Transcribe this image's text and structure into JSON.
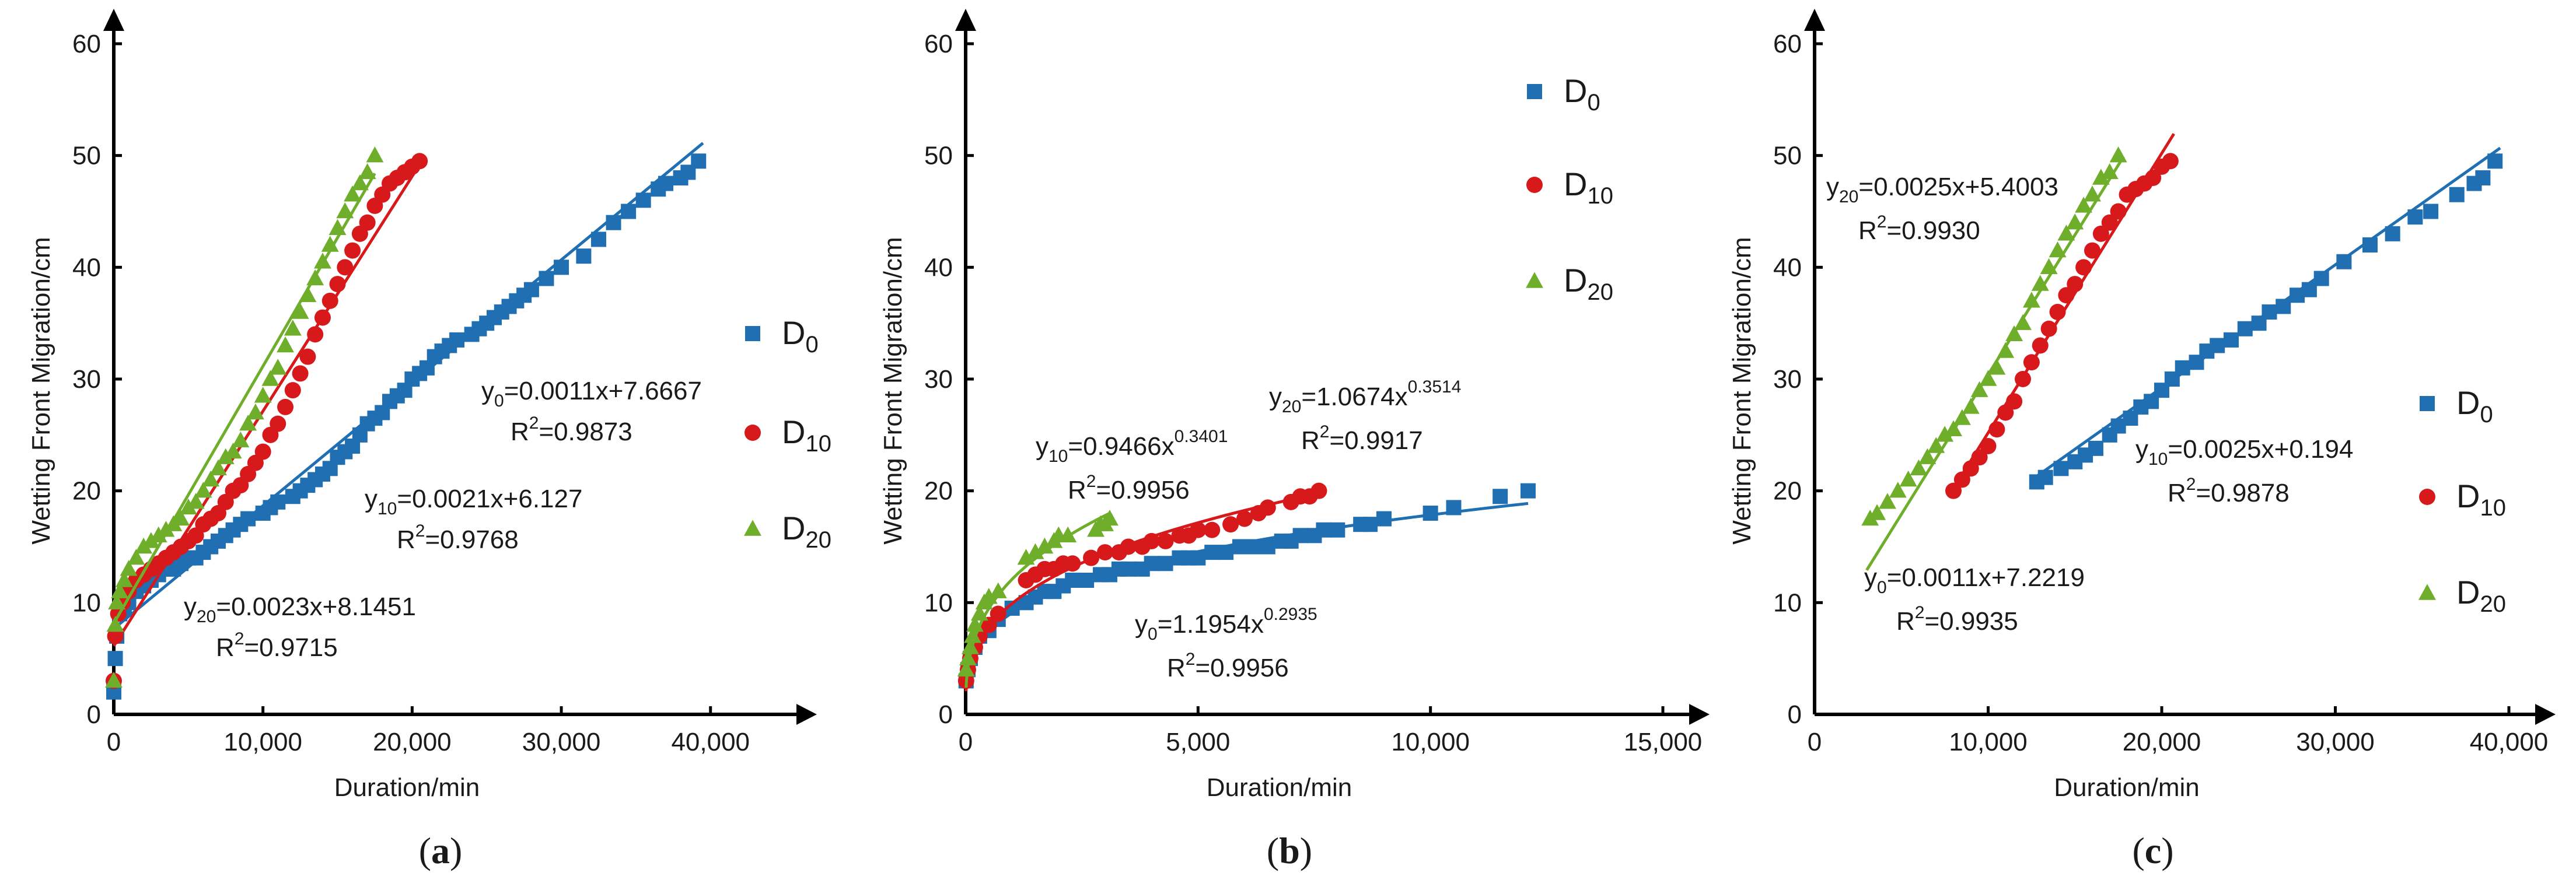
{
  "colors": {
    "D0": "#1f6fb2",
    "D10": "#d7191c",
    "D20": "#6fae2a"
  },
  "x_axis_title": "Duration/min",
  "y_axis_title": "Wetting Front Migration/cm",
  "chart_data": [
    {
      "panel": "(a)",
      "panel_letter": "a",
      "type": "scatter",
      "xlabel": "Duration/min",
      "ylabel": "Wetting Front Migration/cm",
      "xlim": [
        0,
        44000
      ],
      "ylim": [
        0,
        60
      ],
      "x_ticks": [
        0,
        10000,
        20000,
        30000,
        40000
      ],
      "x_tick_labels": [
        "0",
        "10,000",
        "20,000",
        "30,000",
        "40,000"
      ],
      "y_ticks": [
        0,
        10,
        20,
        30,
        40,
        50,
        60
      ],
      "y_tick_labels": [
        "0",
        "10",
        "20",
        "30",
        "40",
        "50",
        "60"
      ],
      "legend": [
        "D0",
        "D10",
        "D20"
      ],
      "legend_position": "right",
      "series": [
        {
          "name": "D0",
          "marker": "square",
          "x": [
            0,
            100,
            200,
            400,
            700,
            1000,
            1500,
            2000,
            2500,
            3000,
            3500,
            4000,
            4500,
            5000,
            5500,
            6000,
            6500,
            7000,
            7500,
            8000,
            8500,
            9000,
            10000,
            10500,
            11000,
            12000,
            12500,
            13000,
            13500,
            14000,
            14500,
            15000,
            15500,
            16000,
            16500,
            17000,
            17500,
            18000,
            18500,
            19000,
            19500,
            20000,
            20500,
            21000,
            21500,
            22000,
            22500,
            23000,
            24000,
            24500,
            25000,
            25500,
            26000,
            26500,
            27000,
            27500,
            28000,
            29000,
            30000,
            31500,
            32500,
            33500,
            34500,
            35500,
            36500,
            37000,
            38000,
            38500,
            39200
          ],
          "y": [
            2,
            5,
            7,
            9,
            9.5,
            10,
            11,
            11.5,
            12,
            12.5,
            13,
            13,
            13.5,
            14,
            14,
            14.5,
            15,
            15.5,
            16,
            16.5,
            17,
            17.5,
            18,
            18.5,
            19,
            19.5,
            20,
            20.5,
            21,
            21.5,
            22,
            23,
            23.5,
            24,
            25,
            26,
            26.5,
            27,
            28,
            28.5,
            29,
            30,
            30.5,
            31,
            32,
            32.5,
            33,
            33.5,
            34,
            34.5,
            35,
            35.5,
            36,
            36.5,
            37,
            37.5,
            38,
            39,
            40,
            41,
            42.5,
            44,
            45,
            46,
            47,
            47.5,
            48,
            48.5,
            49.5
          ],
          "fit": {
            "equation": "y0=0.0011x+7.6667",
            "r2": "R2=0.9873",
            "kind": "linear",
            "x_range": [
              0,
              39500
            ]
          }
        },
        {
          "name": "D10",
          "marker": "circle",
          "x": [
            0,
            100,
            300,
            600,
            1000,
            1500,
            2000,
            2500,
            3000,
            3500,
            4000,
            4500,
            5000,
            5500,
            6000,
            6500,
            7000,
            7500,
            8000,
            8500,
            9000,
            9500,
            10000,
            10500,
            11000,
            11500,
            12000,
            12500,
            13000,
            13500,
            14000,
            14500,
            15000,
            15500,
            16000,
            16500,
            17000,
            17500,
            18000,
            18500,
            19000,
            19500,
            20000,
            20500
          ],
          "y": [
            3,
            7,
            9,
            10,
            11,
            12,
            12.5,
            13,
            13.5,
            14,
            14.5,
            15,
            15.5,
            16,
            17,
            17.5,
            18,
            19,
            20,
            20.5,
            21.5,
            22.5,
            23.5,
            25,
            26,
            27.5,
            29,
            30.5,
            32,
            34,
            35.5,
            37,
            38.5,
            40,
            41.5,
            43,
            44,
            45.5,
            46.5,
            47.5,
            48,
            48.5,
            49,
            49.5
          ],
          "fit": {
            "equation": "y10=0.0021x+6.127",
            "r2": "R2=0.9768",
            "kind": "linear",
            "x_range": [
              0,
              20500
            ]
          }
        },
        {
          "name": "D20",
          "marker": "triangle",
          "x": [
            0,
            100,
            200,
            400,
            700,
            1000,
            1500,
            2000,
            2500,
            3000,
            3500,
            4000,
            4500,
            5000,
            5500,
            6000,
            6500,
            7000,
            7500,
            8000,
            8500,
            9000,
            9500,
            10000,
            10500,
            11000,
            11500,
            12000,
            12500,
            13000,
            13500,
            14000,
            14500,
            15000,
            15500,
            16000,
            16500,
            17000,
            17500
          ],
          "y": [
            3,
            8,
            10,
            11,
            12,
            13,
            14,
            15,
            15.5,
            16,
            16.5,
            17,
            17.5,
            18.5,
            19,
            20,
            21,
            22,
            23,
            23.5,
            24.5,
            26,
            27,
            28.5,
            30,
            31,
            33,
            34.5,
            36,
            37.5,
            39,
            40.5,
            42,
            43.5,
            45,
            46.5,
            47.5,
            48.5,
            50
          ],
          "fit": {
            "equation": "y20=0.0023x+8.1451",
            "r2": "R2=0.9715",
            "kind": "linear",
            "x_range": [
              0,
              17500
            ]
          }
        }
      ]
    },
    {
      "panel": "(b)",
      "panel_letter": "b",
      "type": "scatter",
      "xlabel": "Duration/min",
      "ylabel": "Wetting Front Migration/cm",
      "xlim": [
        0,
        15000
      ],
      "ylim": [
        0,
        60
      ],
      "x_ticks": [
        0,
        5000,
        10000,
        15000
      ],
      "x_tick_labels": [
        "0",
        "5,000",
        "10,000",
        "15,000"
      ],
      "y_ticks": [
        0,
        10,
        20,
        30,
        40,
        50,
        60
      ],
      "y_tick_labels": [
        "0",
        "10",
        "20",
        "30",
        "40",
        "50",
        "60"
      ],
      "legend": [
        "D0",
        "D10",
        "D20"
      ],
      "legend_position": "top-right",
      "series": [
        {
          "name": "D0",
          "marker": "square",
          "x": [
            10,
            50,
            100,
            200,
            300,
            500,
            700,
            1000,
            1300,
            1500,
            1700,
            1900,
            2100,
            2300,
            2600,
            2900,
            3100,
            3300,
            3500,
            3800,
            4000,
            4300,
            4600,
            4800,
            5000,
            5300,
            5600,
            5900,
            6200,
            6500,
            6800,
            7000,
            7200,
            7500,
            7700,
            8000,
            8500,
            8700,
            9000,
            10000,
            10500,
            11500,
            12100
          ],
          "y": [
            3,
            4,
            5,
            6,
            7,
            7.5,
            8.5,
            9.5,
            10,
            10.5,
            11,
            11,
            11.5,
            12,
            12,
            12.5,
            12.5,
            13,
            13,
            13,
            13.5,
            13.5,
            14,
            14,
            14,
            14.5,
            14.5,
            15,
            15,
            15,
            15.5,
            15.5,
            16,
            16,
            16.5,
            16.5,
            17,
            17,
            17.5,
            18,
            18.5,
            19.5,
            20
          ],
          "fit": {
            "equation": "y0=1.1954x0.2935",
            "r2": "R2=0.9956",
            "kind": "power",
            "a": 1.1954,
            "b": 0.2935,
            "x_range": [
              10,
              12100
            ]
          }
        },
        {
          "name": "D10",
          "marker": "circle",
          "x": [
            10,
            50,
            100,
            200,
            300,
            500,
            700,
            1300,
            1500,
            1700,
            1900,
            2100,
            2300,
            2700,
            3000,
            3300,
            3500,
            3800,
            4000,
            4300,
            4600,
            4800,
            5000,
            5300,
            5700,
            6000,
            6300,
            6500,
            7000,
            7200,
            7400,
            7600
          ],
          "y": [
            3,
            4,
            5,
            6,
            7,
            8,
            9,
            12,
            12.5,
            13,
            13,
            13.5,
            13.5,
            14,
            14.5,
            14.5,
            15,
            15,
            15.5,
            15.5,
            16,
            16,
            16.5,
            16.5,
            17,
            17.5,
            18,
            18.5,
            19,
            19.5,
            19.5,
            20
          ],
          "fit": {
            "equation": "y10=0.9466x0.3401",
            "r2": "R2=0.9956",
            "kind": "power",
            "a": 0.9466,
            "b": 0.3401,
            "x_range": [
              10,
              7700
            ]
          }
        },
        {
          "name": "D20",
          "marker": "triangle",
          "x": [
            10,
            50,
            100,
            150,
            200,
            300,
            400,
            500,
            700,
            1300,
            1500,
            1700,
            1900,
            2000,
            2200,
            2800,
            2900,
            3000,
            3100
          ],
          "y": [
            4,
            5,
            6,
            7,
            8,
            9,
            10,
            10.5,
            11,
            14,
            14.5,
            15,
            15.5,
            16,
            16,
            16.5,
            17,
            17,
            17.5
          ],
          "fit": {
            "equation": "y20=1.0674x0.3514",
            "r2": "R2=0.9917",
            "kind": "power",
            "a": 1.0674,
            "b": 0.3514,
            "x_range": [
              10,
              3100
            ]
          }
        }
      ]
    },
    {
      "panel": "(c)",
      "panel_letter": "c",
      "type": "scatter",
      "xlabel": "Duration/min",
      "ylabel": "Wetting Front Migration/cm",
      "xlim": [
        0,
        40000
      ],
      "ylim": [
        0,
        60
      ],
      "x_ticks": [
        0,
        10000,
        20000,
        30000,
        40000
      ],
      "x_tick_labels": [
        "0",
        "10,000",
        "20,000",
        "30,000",
        "40,000"
      ],
      "y_ticks": [
        0,
        10,
        20,
        30,
        40,
        50,
        60
      ],
      "y_tick_labels": [
        "0",
        "10",
        "20",
        "30",
        "40",
        "50",
        "60"
      ],
      "legend": [
        "D0",
        "D10",
        "D20"
      ],
      "legend_position": "right",
      "series": [
        {
          "name": "D0",
          "marker": "square",
          "x": [
            12800,
            13300,
            14200,
            15000,
            15600,
            16200,
            17000,
            17500,
            18200,
            18800,
            19400,
            20000,
            20600,
            21200,
            22000,
            22600,
            23200,
            24000,
            24800,
            25600,
            26200,
            27000,
            27800,
            28500,
            29200,
            30500,
            32000,
            33300,
            34600,
            35500,
            37000,
            38000,
            38500,
            39200
          ],
          "y": [
            20.8,
            21.2,
            22,
            22.6,
            23.2,
            23.8,
            25,
            25.8,
            26.5,
            27.5,
            28,
            29,
            30,
            31,
            31.5,
            32.5,
            33,
            33.5,
            34.5,
            35,
            36,
            36.5,
            37.5,
            38,
            39,
            40.5,
            42,
            43,
            44.5,
            45,
            46.5,
            47.5,
            48,
            49.5
          ],
          "fit": {
            "equation": "y0=0.0011x+7.2219",
            "r2": "R2=0.9935",
            "kind": "linear",
            "x_range": [
              12800,
              39500
            ]
          }
        },
        {
          "name": "D10",
          "marker": "circle",
          "x": [
            8000,
            8500,
            9000,
            9500,
            10000,
            10500,
            11000,
            11500,
            12000,
            12500,
            13000,
            13500,
            14000,
            14500,
            15000,
            15500,
            16000,
            16500,
            17000,
            17500,
            18000,
            18500,
            19000,
            19500,
            20000,
            20500
          ],
          "y": [
            20,
            21,
            22,
            23,
            24,
            25.5,
            27,
            28,
            30,
            31.5,
            33,
            34.5,
            36,
            37.5,
            38.5,
            40,
            41.5,
            43,
            44,
            45,
            46.5,
            47,
            47.5,
            48,
            49,
            49.5
          ],
          "fit": {
            "equation": "y10=0.0025x+0.194",
            "r2": "R2=0.9878",
            "kind": "linear",
            "x_range": [
              7800,
              20700
            ]
          }
        },
        {
          "name": "D20",
          "marker": "triangle",
          "x": [
            3200,
            3600,
            4200,
            4800,
            5400,
            6000,
            6500,
            7000,
            7500,
            8000,
            8500,
            9000,
            9500,
            10000,
            10500,
            11000,
            11500,
            12000,
            12500,
            13000,
            13500,
            14000,
            14500,
            15000,
            15500,
            16000,
            16500,
            17000,
            17500
          ],
          "y": [
            17.5,
            18,
            19,
            20,
            21,
            22,
            23,
            24,
            25,
            25.5,
            26.5,
            27.5,
            29,
            30,
            31,
            32.5,
            34,
            35,
            37,
            38.5,
            40,
            41.5,
            43,
            44,
            45.5,
            46.5,
            48,
            48.5,
            50
          ],
          "fit": {
            "equation": "y20=0.0025x+5.4003",
            "r2": "R2=0.9930",
            "kind": "linear",
            "x_range": [
              3000,
              17800
            ]
          }
        }
      ]
    }
  ]
}
